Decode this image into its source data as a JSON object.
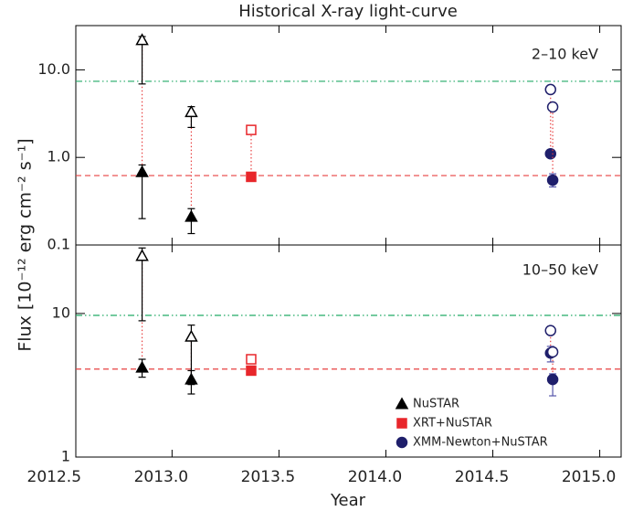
{
  "chart_data": [
    {
      "type": "scatter",
      "title": "Historical X-ray light-curve",
      "ylabel": "Flux [10⁻¹² erg cm⁻² s⁻¹]",
      "panel_label": "2–10 keV",
      "log_y": true,
      "xlim": [
        2012.55,
        2015.1
      ],
      "xticks": [
        2012.5,
        {
          "value": 2013.0,
          "label": "2013.0"
        },
        2013.5,
        {
          "value": 2014.0,
          "label": "2014.0"
        },
        2014.5,
        {
          "value": 2015.0,
          "label": "2015.0"
        }
      ],
      "ylim": [
        0.1,
        32
      ],
      "yticks": [
        0.1,
        {
          "value": 1,
          "label": "1.0"
        },
        {
          "value": 10,
          "label": "10.0"
        }
      ],
      "hlines": [
        {
          "value": 7.4,
          "color": "#22aa66",
          "style": "dashdot"
        },
        {
          "value": 0.62,
          "color": "#e84040",
          "style": "dashed"
        }
      ],
      "series": [
        {
          "marker": "triangle",
          "color": "#000000",
          "errcolor": "#000000",
          "x": [
            2012.86,
            2013.09
          ],
          "values": [
            0.68,
            0.21
          ],
          "lower": [
            0.2,
            0.135
          ],
          "upper": [
            0.82,
            0.26
          ],
          "open_values": [
            21.9,
            3.3
          ],
          "open_lower": [
            6.9,
            2.2
          ],
          "open_upper": [
            24,
            3.8
          ]
        },
        {
          "marker": "square",
          "color": "#e8262b",
          "errcolor": "#e8262b",
          "x": [
            2013.37
          ],
          "values": [
            0.6
          ],
          "lower": [
            null
          ],
          "upper": [
            null
          ],
          "open_values": [
            2.06
          ],
          "open_lower": [
            null
          ],
          "open_upper": [
            null
          ]
        },
        {
          "marker": "circle",
          "color": "#1f1f6b",
          "errcolor": "#5555aa",
          "x": [
            2014.77,
            2014.78
          ],
          "values": [
            1.1,
            0.55
          ],
          "lower": [
            null,
            0.46
          ],
          "upper": [
            null,
            0.65
          ],
          "open_values": [
            5.96,
            3.77
          ],
          "open_lower": [
            null,
            null
          ],
          "open_upper": [
            null,
            null
          ]
        }
      ]
    },
    {
      "type": "scatter",
      "xlabel": "Year",
      "panel_label": "10–50 keV",
      "log_y": true,
      "legend": "lower right",
      "xlim": [
        2012.55,
        2015.1
      ],
      "xticks": [
        2012.5,
        {
          "value": 2013.0,
          "label": "2013.0"
        },
        2013.5,
        {
          "value": 2014.0,
          "label": "2014.0"
        },
        2014.5,
        {
          "value": 2015.0,
          "label": "2015.0"
        }
      ],
      "ylim": [
        1,
        30
      ],
      "yticks": [
        1,
        10
      ],
      "hlines": [
        {
          "value": 9.7,
          "color": "#22aa66",
          "style": "dashdot"
        },
        {
          "value": 4.1,
          "color": "#e84040",
          "style": "dashed"
        }
      ],
      "series": [
        {
          "name": "NuSTAR",
          "marker": "triangle",
          "color": "#000000",
          "errcolor": "#000000",
          "x": [
            2012.86,
            2013.09
          ],
          "values": [
            4.2,
            3.47
          ],
          "lower": [
            3.6,
            2.75
          ],
          "upper": [
            4.8,
            4.0
          ],
          "open_values": [
            25.2,
            6.9
          ],
          "open_lower": [
            8.9,
            3.2
          ],
          "open_upper": [
            28.6,
            8.3
          ]
        },
        {
          "name": "XRT+NuSTAR",
          "marker": "square",
          "color": "#e8262b",
          "errcolor": "#e8262b",
          "x": [
            2013.37
          ],
          "values": [
            4.0
          ],
          "lower": [
            null
          ],
          "upper": [
            null
          ],
          "open_values": [
            4.8
          ],
          "open_lower": [
            null
          ],
          "open_upper": [
            null
          ]
        },
        {
          "name": "XMM-Newton+NuSTAR",
          "marker": "circle",
          "color": "#1f1f6b",
          "errcolor": "#5555aa",
          "x": [
            2014.77,
            2014.78
          ],
          "values": [
            5.3,
            3.47
          ],
          "lower": [
            4.6,
            2.67
          ],
          "upper": [
            5.9,
            3.8
          ],
          "open_values": [
            7.6,
            5.4
          ],
          "open_lower": [
            null,
            null
          ],
          "open_upper": [
            null,
            null
          ]
        }
      ]
    }
  ]
}
